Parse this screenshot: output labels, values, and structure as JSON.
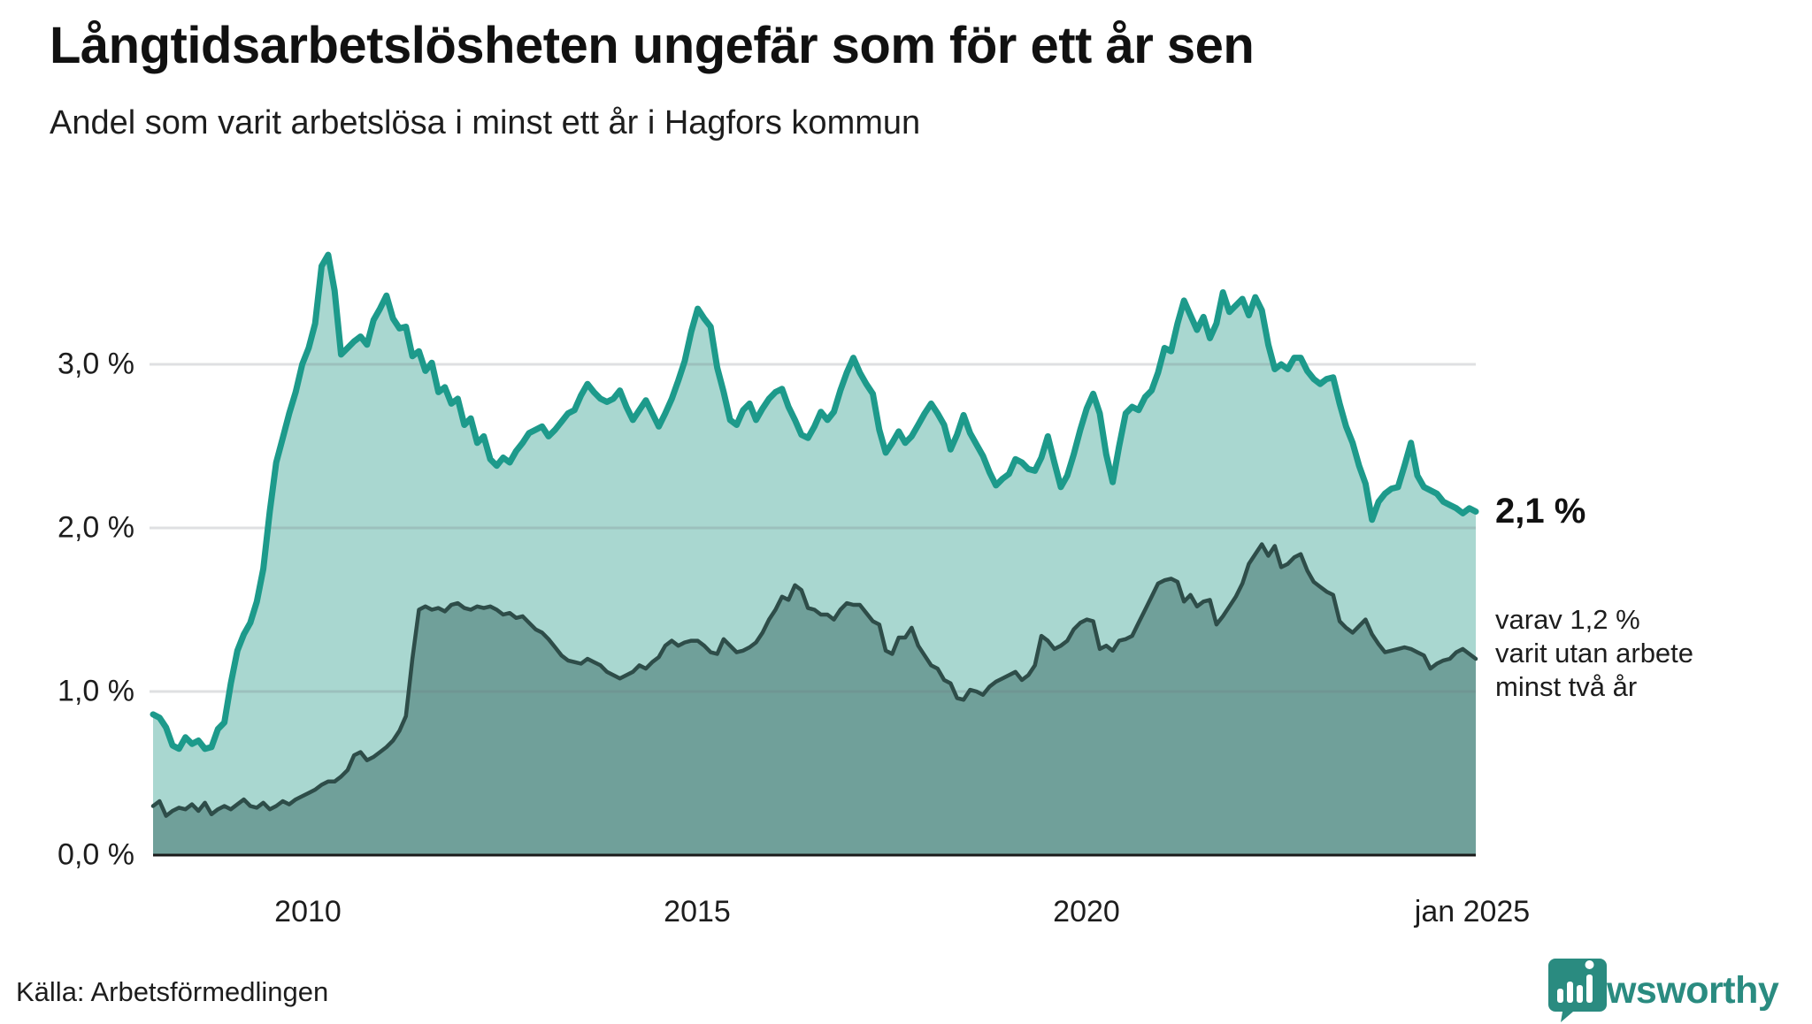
{
  "header": {
    "title": "Långtidsarbetslösheten ungefär som för ett år sen",
    "subtitle": "Andel som varit arbetslösa i minst ett år i Hagfors kommun"
  },
  "chart_data": {
    "type": "area",
    "title": "Långtidsarbetslösheten ungefär som för ett år sen",
    "subtitle": "Andel som varit arbetslösa i minst ett år i Hagfors kommun",
    "x_start": "2008-01",
    "x_end": "2025-01",
    "x_interval": "monthly",
    "x_tick_labels": [
      "2010",
      "2015",
      "2020",
      "jan 2025"
    ],
    "x_tick_positions_years": [
      2010.0,
      2015.0,
      2020.0,
      2025.0
    ],
    "y_tick_labels": [
      "0,0 %",
      "1,0 %",
      "2,0 %",
      "3,0 %"
    ],
    "y_tick_values": [
      0.0,
      1.0,
      2.0,
      3.0
    ],
    "ylim": [
      0.0,
      4.0
    ],
    "grid": true,
    "legend_position": "none",
    "colors": {
      "series1_line": "#1d9a8b",
      "series1_fill": "#a9d7d0",
      "series2_line": "#2e4d49",
      "series2_fill": "#70a09a",
      "gridline_overlay": "rgba(110,115,122,0.22)",
      "axis_line": "#1a1a1a",
      "brand_teal": "#2a8b80"
    },
    "series": [
      {
        "name": "Andel arbetslösa minst ett år",
        "end_value_label": "2,1 %",
        "values": [
          0.86,
          0.84,
          0.78,
          0.67,
          0.65,
          0.72,
          0.68,
          0.7,
          0.65,
          0.66,
          0.77,
          0.81,
          1.05,
          1.25,
          1.35,
          1.42,
          1.55,
          1.75,
          2.1,
          2.4,
          2.55,
          2.7,
          2.83,
          3.0,
          3.1,
          3.25,
          3.6,
          3.67,
          3.45,
          3.06,
          3.1,
          3.14,
          3.17,
          3.12,
          3.27,
          3.34,
          3.42,
          3.28,
          3.22,
          3.23,
          3.05,
          3.08,
          2.96,
          3.01,
          2.83,
          2.86,
          2.76,
          2.79,
          2.63,
          2.67,
          2.52,
          2.56,
          2.42,
          2.38,
          2.43,
          2.4,
          2.47,
          2.52,
          2.58,
          2.6,
          2.62,
          2.56,
          2.6,
          2.65,
          2.7,
          2.72,
          2.81,
          2.88,
          2.83,
          2.79,
          2.77,
          2.79,
          2.84,
          2.74,
          2.66,
          2.72,
          2.78,
          2.7,
          2.62,
          2.7,
          2.79,
          2.9,
          3.02,
          3.2,
          3.34,
          3.28,
          3.23,
          2.98,
          2.83,
          2.66,
          2.63,
          2.72,
          2.76,
          2.66,
          2.73,
          2.79,
          2.83,
          2.85,
          2.74,
          2.66,
          2.57,
          2.55,
          2.62,
          2.71,
          2.66,
          2.71,
          2.84,
          2.95,
          3.04,
          2.95,
          2.88,
          2.82,
          2.6,
          2.46,
          2.52,
          2.59,
          2.52,
          2.56,
          2.63,
          2.7,
          2.76,
          2.7,
          2.63,
          2.48,
          2.57,
          2.69,
          2.58,
          2.51,
          2.44,
          2.34,
          2.26,
          2.3,
          2.33,
          2.42,
          2.4,
          2.36,
          2.35,
          2.43,
          2.56,
          2.4,
          2.25,
          2.32,
          2.45,
          2.6,
          2.73,
          2.82,
          2.7,
          2.45,
          2.28,
          2.5,
          2.7,
          2.74,
          2.72,
          2.8,
          2.84,
          2.95,
          3.1,
          3.08,
          3.25,
          3.39,
          3.3,
          3.21,
          3.29,
          3.16,
          3.25,
          3.44,
          3.32,
          3.36,
          3.4,
          3.3,
          3.41,
          3.33,
          3.12,
          2.97,
          3.0,
          2.97,
          3.04,
          3.04,
          2.96,
          2.91,
          2.88,
          2.91,
          2.92,
          2.76,
          2.62,
          2.52,
          2.38,
          2.27,
          2.05,
          2.16,
          2.21,
          2.24,
          2.25,
          2.38,
          2.52,
          2.32,
          2.25,
          2.23,
          2.21,
          2.16,
          2.14,
          2.12,
          2.09,
          2.12,
          2.1
        ]
      },
      {
        "name": "varav arbetslösa minst två år",
        "end_value_label": "1,2 %",
        "values": [
          0.3,
          0.33,
          0.24,
          0.27,
          0.29,
          0.28,
          0.31,
          0.27,
          0.32,
          0.25,
          0.28,
          0.3,
          0.28,
          0.31,
          0.34,
          0.3,
          0.29,
          0.32,
          0.28,
          0.3,
          0.33,
          0.31,
          0.34,
          0.36,
          0.38,
          0.4,
          0.43,
          0.45,
          0.45,
          0.48,
          0.52,
          0.61,
          0.63,
          0.58,
          0.6,
          0.63,
          0.66,
          0.7,
          0.76,
          0.85,
          1.2,
          1.5,
          1.52,
          1.5,
          1.51,
          1.49,
          1.53,
          1.54,
          1.51,
          1.5,
          1.52,
          1.51,
          1.52,
          1.5,
          1.47,
          1.48,
          1.45,
          1.46,
          1.42,
          1.38,
          1.36,
          1.32,
          1.27,
          1.22,
          1.19,
          1.18,
          1.17,
          1.2,
          1.18,
          1.16,
          1.12,
          1.1,
          1.08,
          1.1,
          1.12,
          1.16,
          1.14,
          1.18,
          1.21,
          1.28,
          1.31,
          1.28,
          1.3,
          1.31,
          1.31,
          1.28,
          1.24,
          1.23,
          1.32,
          1.28,
          1.24,
          1.25,
          1.27,
          1.3,
          1.36,
          1.44,
          1.5,
          1.58,
          1.56,
          1.65,
          1.62,
          1.51,
          1.5,
          1.47,
          1.47,
          1.44,
          1.5,
          1.54,
          1.53,
          1.53,
          1.48,
          1.43,
          1.41,
          1.25,
          1.23,
          1.33,
          1.33,
          1.39,
          1.28,
          1.22,
          1.16,
          1.14,
          1.07,
          1.05,
          0.96,
          0.95,
          1.01,
          1.0,
          0.98,
          1.03,
          1.06,
          1.08,
          1.1,
          1.12,
          1.07,
          1.1,
          1.16,
          1.34,
          1.31,
          1.26,
          1.28,
          1.31,
          1.38,
          1.42,
          1.44,
          1.43,
          1.26,
          1.28,
          1.25,
          1.31,
          1.32,
          1.34,
          1.42,
          1.5,
          1.58,
          1.66,
          1.68,
          1.69,
          1.67,
          1.55,
          1.59,
          1.52,
          1.55,
          1.56,
          1.41,
          1.46,
          1.52,
          1.58,
          1.66,
          1.78,
          1.84,
          1.9,
          1.83,
          1.89,
          1.76,
          1.78,
          1.82,
          1.84,
          1.74,
          1.67,
          1.64,
          1.61,
          1.59,
          1.43,
          1.39,
          1.36,
          1.4,
          1.44,
          1.35,
          1.29,
          1.24,
          1.25,
          1.26,
          1.27,
          1.26,
          1.24,
          1.22,
          1.14,
          1.17,
          1.19,
          1.2,
          1.24,
          1.26,
          1.23,
          1.2
        ]
      }
    ],
    "annotations": {
      "end_label_main": "2,1 %",
      "end_label_sub_line1": "varav 1,2 %",
      "end_label_sub_line2": "varit utan arbete",
      "end_label_sub_line3": "minst två år"
    }
  },
  "yticks": {
    "t0": "0,0 %",
    "t1": "1,0 %",
    "t2": "2,0 %",
    "t3": "3,0 %"
  },
  "xticks": {
    "t0": "2010",
    "t1": "2015",
    "t2": "2020",
    "t3": "jan 2025"
  },
  "footer": {
    "source": "Källa: Arbetsförmedlingen",
    "brand": "Newsworthy"
  }
}
